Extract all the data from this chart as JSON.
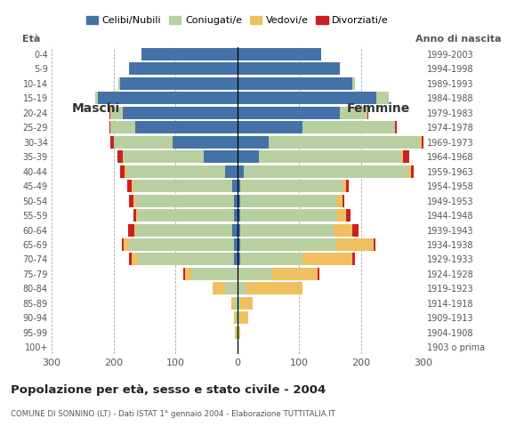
{
  "age_groups": [
    "100+",
    "95-99",
    "90-94",
    "85-89",
    "80-84",
    "75-79",
    "70-74",
    "65-69",
    "60-64",
    "55-59",
    "50-54",
    "45-49",
    "40-44",
    "35-39",
    "30-34",
    "25-29",
    "20-24",
    "15-19",
    "10-14",
    "5-9",
    "0-4"
  ],
  "birth_years": [
    "1903 o prima",
    "1904-1908",
    "1909-1913",
    "1914-1918",
    "1919-1923",
    "1924-1928",
    "1929-1933",
    "1934-1938",
    "1939-1943",
    "1944-1948",
    "1949-1953",
    "1954-1958",
    "1959-1963",
    "1964-1968",
    "1969-1973",
    "1974-1978",
    "1979-1983",
    "1984-1988",
    "1989-1993",
    "1994-1998",
    "1999-2003"
  ],
  "males": {
    "celibe": [
      0,
      0,
      0,
      0,
      0,
      0,
      5,
      5,
      8,
      5,
      5,
      8,
      20,
      55,
      105,
      165,
      185,
      225,
      190,
      175,
      155
    ],
    "coniugato": [
      0,
      2,
      3,
      5,
      20,
      75,
      155,
      170,
      155,
      155,
      160,
      160,
      160,
      130,
      95,
      40,
      20,
      5,
      2,
      0,
      0
    ],
    "vedovo": [
      0,
      2,
      3,
      5,
      20,
      10,
      10,
      8,
      3,
      3,
      3,
      2,
      2,
      0,
      0,
      0,
      0,
      0,
      0,
      0,
      0
    ],
    "divorziato": [
      0,
      0,
      0,
      0,
      0,
      2,
      5,
      3,
      10,
      5,
      7,
      8,
      8,
      8,
      5,
      2,
      2,
      0,
      0,
      0,
      0
    ]
  },
  "females": {
    "nubile": [
      0,
      0,
      0,
      0,
      0,
      0,
      5,
      5,
      5,
      5,
      5,
      5,
      10,
      35,
      50,
      105,
      165,
      225,
      185,
      165,
      135
    ],
    "coniugata": [
      0,
      0,
      3,
      5,
      15,
      55,
      100,
      155,
      150,
      155,
      155,
      165,
      265,
      230,
      245,
      150,
      45,
      20,
      5,
      0,
      0
    ],
    "vedova": [
      0,
      5,
      15,
      20,
      90,
      75,
      80,
      60,
      30,
      15,
      10,
      5,
      5,
      3,
      2,
      0,
      0,
      0,
      0,
      0,
      0
    ],
    "divorziata": [
      0,
      0,
      0,
      0,
      0,
      3,
      5,
      3,
      10,
      8,
      3,
      5,
      5,
      10,
      5,
      2,
      2,
      0,
      0,
      0,
      0
    ]
  },
  "colors": {
    "celibe": "#4472a8",
    "coniugato": "#b8cfa0",
    "vedovo": "#f0c060",
    "divorziato": "#cc2020"
  },
  "xlim": 300,
  "title": "Popolazione per età, sesso e stato civile - 2004",
  "subtitle": "COMUNE DI SONNINO (LT) - Dati ISTAT 1° gennaio 2004 - Elaborazione TUTTITALIA.IT",
  "legend_labels": [
    "Celibi/Nubili",
    "Coniugati/e",
    "Vedovi/e",
    "Divorziati/e"
  ],
  "ylabel_left": "Età",
  "ylabel_right": "Anno di nascita",
  "xlabel_left": "Maschi",
  "xlabel_right": "Femmine",
  "background_color": "#ffffff"
}
